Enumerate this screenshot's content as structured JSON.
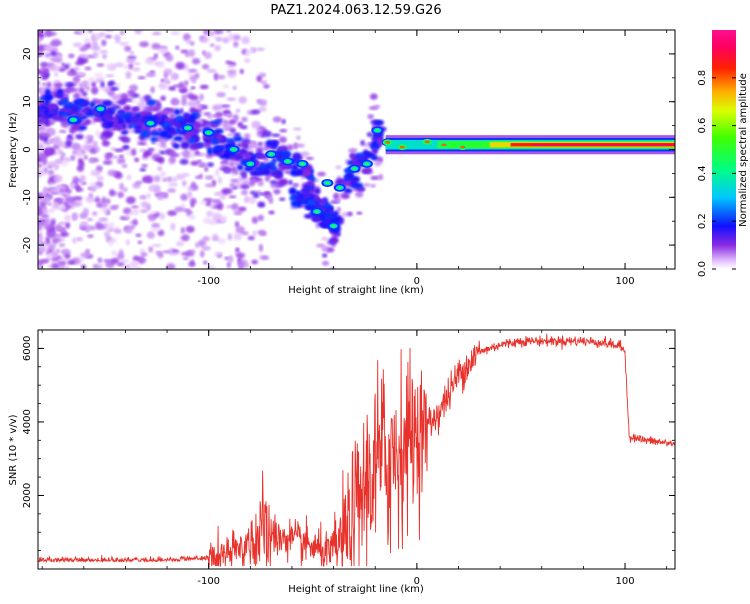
{
  "figure": {
    "title": "PAZ1.2024.063.12.59.G26"
  },
  "chart_data": [
    {
      "type": "heatmap",
      "title": "PAZ1.2024.063.12.59.G26",
      "xlabel": "Height of straight line (km)",
      "ylabel": "Frequency (Hz)",
      "xlim": [
        -182,
        124
      ],
      "ylim": [
        -25,
        25
      ],
      "x_ticks": [
        -100,
        0,
        100
      ],
      "x_tick_labels": [
        "-100",
        "0",
        "100"
      ],
      "y_ticks": [
        -20,
        -10,
        0,
        10,
        20
      ],
      "y_tick_labels": [
        "-20",
        "-10",
        "0",
        "10",
        "20"
      ],
      "grid": false,
      "colorbar": {
        "label": "Normalized spectral amplitude",
        "range": [
          0,
          1
        ],
        "ticks": [
          0.0,
          0.2,
          0.4,
          0.6,
          0.8
        ],
        "tick_labels": [
          "0.0",
          "0.2",
          "0.4",
          "0.6",
          "0.8"
        ],
        "colormap": "hsv-rainbow (white, violet, blue, cyan, green, yellow, red, magenta)"
      },
      "ridge_center_hz": [
        {
          "x": -175,
          "y": 8
        },
        {
          "x": -160,
          "y": 8
        },
        {
          "x": -140,
          "y": 6
        },
        {
          "x": -120,
          "y": 5
        },
        {
          "x": -105,
          "y": 4
        },
        {
          "x": -95,
          "y": 1
        },
        {
          "x": -85,
          "y": -1
        },
        {
          "x": -75,
          "y": -3
        },
        {
          "x": -65,
          "y": -2
        },
        {
          "x": -55,
          "y": -4
        },
        {
          "x": -45,
          "y": -13
        },
        {
          "x": -38,
          "y": -16
        },
        {
          "x": -42,
          "y": -7
        },
        {
          "x": -35,
          "y": -7
        },
        {
          "x": -28,
          "y": -4
        },
        {
          "x": -22,
          "y": -1
        },
        {
          "x": -18,
          "y": 4
        },
        {
          "x": -14,
          "y": 1
        },
        {
          "x": -5,
          "y": 0
        },
        {
          "x": 5,
          "y": 1.5
        },
        {
          "x": 20,
          "y": 1
        },
        {
          "x": 60,
          "y": 1
        },
        {
          "x": 100,
          "y": 1
        },
        {
          "x": 124,
          "y": 1
        }
      ]
    },
    {
      "type": "line",
      "xlabel": "Height of straight line (km)",
      "ylabel": "SNR (10 * v/v)",
      "xlim": [
        -182,
        124
      ],
      "ylim": [
        0,
        6500
      ],
      "x_ticks": [
        -100,
        0,
        100
      ],
      "x_tick_labels": [
        "-100",
        "0",
        "100"
      ],
      "y_ticks": [
        2000,
        4000,
        6000
      ],
      "y_tick_labels": [
        "2000",
        "4000",
        "6000"
      ],
      "grid": false,
      "line_color": "#e8312a",
      "series": [
        {
          "x": [
            -182,
            -160,
            -140,
            -120,
            -100,
            -90,
            -80,
            -75,
            -70,
            -60,
            -50,
            -42,
            -35,
            -30,
            -25,
            -20,
            -15,
            -10,
            -5,
            0,
            5,
            10,
            15,
            20,
            30,
            40,
            50,
            60,
            70,
            80,
            90,
            98,
            100,
            102,
            110,
            124
          ],
          "y": [
            200,
            200,
            200,
            200,
            250,
            400,
            700,
            1000,
            900,
            800,
            600,
            400,
            800,
            1500,
            2200,
            2800,
            3000,
            3200,
            3600,
            3700,
            3900,
            4200,
            4700,
            5300,
            5900,
            6100,
            6200,
            6200,
            6200,
            6200,
            6150,
            6050,
            5900,
            3600,
            3500,
            3400
          ]
        }
      ]
    }
  ]
}
